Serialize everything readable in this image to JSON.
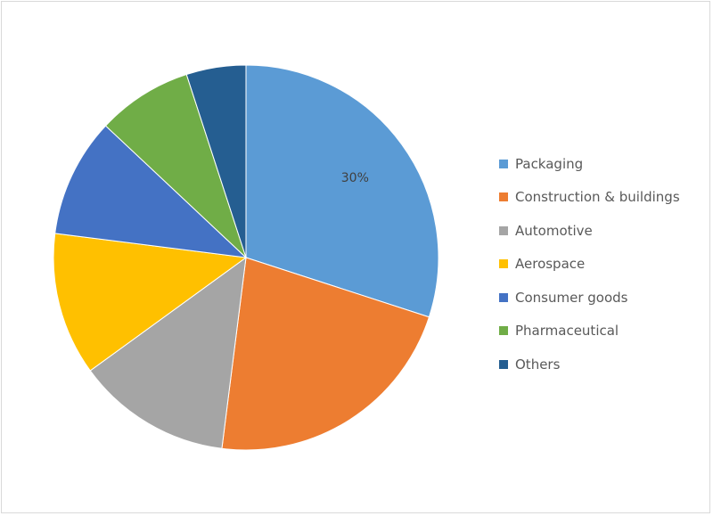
{
  "chart_data": {
    "type": "pie",
    "start_angle_deg": 0,
    "direction": "clockwise",
    "slices": [
      {
        "label": "Packaging",
        "value": 30,
        "color": "#5B9BD5",
        "data_label": "30%"
      },
      {
        "label": "Construction & buildings",
        "value": 22,
        "color": "#ED7D31"
      },
      {
        "label": "Automotive",
        "value": 13,
        "color": "#A5A5A5"
      },
      {
        "label": "Aerospace",
        "value": 12,
        "color": "#FFC000"
      },
      {
        "label": "Consumer goods",
        "value": 10,
        "color": "#4472C4"
      },
      {
        "label": "Pharmaceutical",
        "value": 8,
        "color": "#70AD47"
      },
      {
        "label": "Others",
        "value": 5,
        "color": "#255E91"
      }
    ],
    "legend_position": "right"
  }
}
